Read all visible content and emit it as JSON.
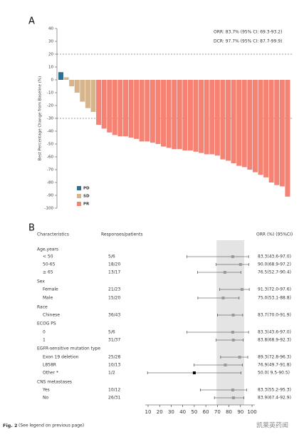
{
  "chart_data": [
    {
      "type": "waterfall",
      "panel_label": "A",
      "ylabel": "Best Percentage Change from Baseline (%)",
      "annotations": [
        "ORR: 83.7% (95% CI: 69.3-93.2)",
        "DCR: 97.7% (95% CI: 87.7-99.9)"
      ],
      "ylim": [
        -100,
        40
      ],
      "yticks": [
        40,
        30,
        20,
        10,
        0,
        -10,
        -20,
        -30,
        -40,
        -50,
        -60,
        -70,
        -80,
        -90,
        -100
      ],
      "hlines": [
        20,
        -30
      ],
      "series": [
        {
          "name": "PD",
          "color": "#2f6f90",
          "values": [
            6
          ]
        },
        {
          "name": "SD",
          "color": "#d6b48c",
          "values": [
            2,
            -5,
            -10,
            -17,
            -22,
            -25
          ]
        },
        {
          "name": "PR",
          "color": "#f58273",
          "values": [
            -35,
            -38,
            -41,
            -43,
            -44,
            -44,
            -45,
            -46,
            -48,
            -48,
            -49,
            -50,
            -52,
            -53,
            -54,
            -54,
            -55,
            -55,
            -56,
            -57,
            -58,
            -58,
            -59,
            -62,
            -63,
            -65,
            -67,
            -68,
            -70,
            -72,
            -74,
            -76,
            -80,
            -82,
            -83,
            -91
          ]
        }
      ]
    },
    {
      "type": "forest",
      "panel_label": "B",
      "headers": [
        "Characteristics",
        "Responses/patients",
        "ORR (%) (95%CI)"
      ],
      "xlim": [
        10,
        100
      ],
      "xticks": [
        10,
        20,
        30,
        40,
        50,
        60,
        70,
        80,
        90,
        100
      ],
      "band": [
        69.3,
        93.2
      ],
      "point_color": "#9a9a9a",
      "rows": [
        {
          "label": "Age,years"
        },
        {
          "label": "< 50",
          "responses": "5/6",
          "value": 83.3,
          "ci": [
            43.6,
            97.0
          ],
          "value_label": "83.3(43.6-97.0)"
        },
        {
          "label": "50-65",
          "responses": "18/20",
          "value": 90.0,
          "ci": [
            68.9,
            97.2
          ],
          "value_label": "90.0(68.9-97.2)"
        },
        {
          "label": "≥ 65",
          "responses": "13/17",
          "value": 76.5,
          "ci": [
            52.7,
            90.4
          ],
          "value_label": "76.5(52.7-90.4)"
        },
        {
          "label": "Sex"
        },
        {
          "label": "Female",
          "responses": "21/23",
          "value": 91.3,
          "ci": [
            72.0,
            97.6
          ],
          "value_label": "91.3(72.0-97.6)"
        },
        {
          "label": "Male",
          "responses": "15/20",
          "value": 75.0,
          "ci": [
            53.1,
            88.8
          ],
          "value_label": "75.0(53.1-88.8)"
        },
        {
          "label": "Race"
        },
        {
          "label": "Chinese",
          "responses": "36/43",
          "value": 83.7,
          "ci": [
            70.0,
            91.9
          ],
          "value_label": "83.7(70.0-91.9)"
        },
        {
          "label": "ECOG PS"
        },
        {
          "label": "0",
          "responses": "5/6",
          "value": 83.3,
          "ci": [
            43.6,
            97.0
          ],
          "value_label": "83.3(43.6-97.0)"
        },
        {
          "label": "1",
          "responses": "31/37",
          "value": 83.8,
          "ci": [
            68.9,
            92.3
          ],
          "value_label": "83.8(68.9-92.3)"
        },
        {
          "label": "EGFR-sensitive mutation type"
        },
        {
          "label": "Exon 19 deletion",
          "responses": "25/28",
          "value": 89.3,
          "ci": [
            72.8,
            96.3
          ],
          "value_label": "89.3(72.8-96.3)"
        },
        {
          "label": "L858R",
          "responses": "10/13",
          "value": 76.9,
          "ci": [
            49.7,
            91.8
          ],
          "value_label": "76.9(49.7-91.8)"
        },
        {
          "label": "Other *",
          "responses": "1/2",
          "value": 50.0,
          "ci": [
            9.5,
            90.5
          ],
          "value_label": "50.0( 9.5-90.5)",
          "color": "#000000"
        },
        {
          "label": "CNS metastases"
        },
        {
          "label": "Yes",
          "responses": "10/12",
          "value": 83.3,
          "ci": [
            55.2,
            95.3
          ],
          "value_label": "83.3(55.2-95.3)"
        },
        {
          "label": "No",
          "responses": "26/31",
          "value": 83.9,
          "ci": [
            67.4,
            92.9
          ],
          "value_label": "83.9(67.4-92.9)"
        }
      ]
    }
  ],
  "caption": "Fig. 2",
  "caption_note": "(See legend on previous page)",
  "watermark": "凯莱英药闻"
}
